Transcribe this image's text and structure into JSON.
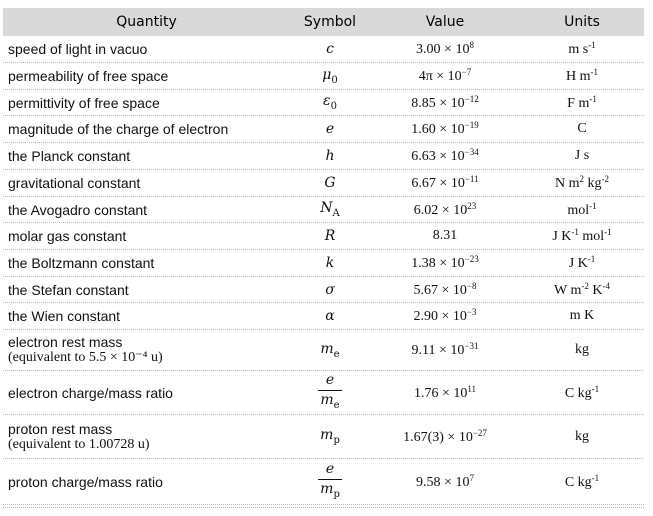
{
  "header": {
    "quantity": "Quantity",
    "symbol": "Symbol",
    "value": "Value",
    "units": "Units"
  },
  "rows": [
    {
      "quantity": "speed of light in vacuo",
      "symbol": "c",
      "mantissa": "3.00 × 10",
      "exp": "8",
      "unit_html": "m s<sup>-1</sup>"
    },
    {
      "quantity": "permeability of free space",
      "symbol": "μ",
      "symbol_sub": "0",
      "mantissa": "4π × 10",
      "exp": "−7",
      "unit_html": "H m<sup>-1</sup>"
    },
    {
      "quantity": "permittivity of free space",
      "symbol": "ε",
      "symbol_sub": "0",
      "mantissa": "8.85 × 10",
      "exp": "−12",
      "unit_html": "F m<sup>-1</sup>"
    },
    {
      "quantity": "magnitude of the charge of electron",
      "symbol": "e",
      "mantissa": "1.60 × 10",
      "exp": "−19",
      "unit_html": "C"
    },
    {
      "quantity": "the Planck constant",
      "symbol": "h",
      "mantissa": "6.63 × 10",
      "exp": "−34",
      "unit_html": "J s"
    },
    {
      "quantity": "gravitational constant",
      "symbol": "G",
      "mantissa": "6.67 × 10",
      "exp": "−11",
      "unit_html": "N m<sup>2</sup> kg<sup>-2</sup>"
    },
    {
      "quantity": "the Avogadro constant",
      "symbol": "N",
      "symbol_sub": "A",
      "mantissa": "6.02 × 10",
      "exp": "23",
      "unit_html": "mol<sup>-1</sup>"
    },
    {
      "quantity": "molar gas constant",
      "symbol": "R",
      "mantissa": "8.31",
      "exp": "",
      "unit_html": "J K<sup>-1</sup> mol<sup>-1</sup>"
    },
    {
      "quantity": "the Boltzmann constant",
      "symbol": "k",
      "mantissa": "1.38 × 10",
      "exp": "−23",
      "unit_html": "J K<sup>-1</sup>"
    },
    {
      "quantity": "the Stefan constant",
      "symbol": "σ",
      "mantissa": "5.67 × 10",
      "exp": "−8",
      "unit_html": "W m<sup>-2</sup> K<sup>-4</sup>"
    },
    {
      "quantity": "the Wien constant",
      "symbol": "α",
      "mantissa": "2.90 × 10",
      "exp": "−3",
      "unit_html": "m K"
    },
    {
      "quantity": "electron rest mass",
      "quantity_note": "(equivalent to 5.5 × 10⁻⁴ u)",
      "symbol": "m",
      "symbol_sub": "e",
      "mantissa": "9.11 × 10",
      "exp": "−31",
      "unit_html": "kg"
    },
    {
      "quantity": "electron charge/mass ratio",
      "frac_num": "e",
      "frac_den": "m",
      "frac_den_sub": "e",
      "mantissa": "1.76 × 10",
      "exp": "11",
      "unit_html": "C kg<sup>-1</sup>"
    },
    {
      "quantity": "proton rest mass",
      "quantity_note": "(equivalent to 1.00728 u)",
      "symbol": "m",
      "symbol_sub": "p",
      "mantissa": "1.67(3) × 10",
      "exp": "−27",
      "unit_html": "kg"
    },
    {
      "quantity": "proton charge/mass ratio",
      "frac_num": "e",
      "frac_den": "m",
      "frac_den_sub": "p",
      "mantissa": "9.58 × 10",
      "exp": "7",
      "unit_html": "C kg<sup>-1</sup>"
    }
  ]
}
